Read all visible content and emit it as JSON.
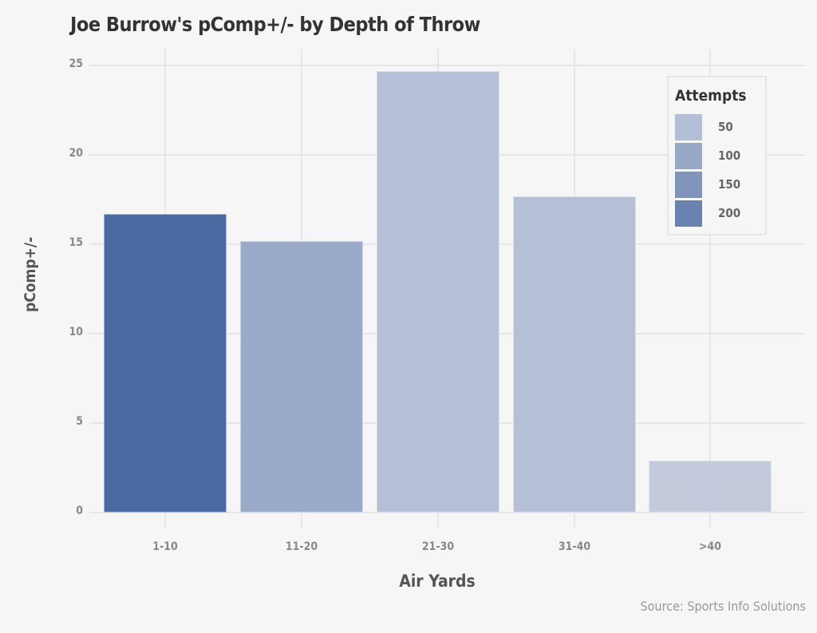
{
  "title": "Joe Burrow's pComp+/- by Depth of Throw",
  "source": "Source: Sports Info Solutions",
  "colors": {
    "background": "#f6f6f6",
    "grid": "#e6e6e6",
    "attempts_50": "#b3bfd7",
    "attempts_100": "#98a9c8",
    "attempts_150": "#8195bb",
    "attempts_200": "#6a82b0",
    "bar_1_10": "#4566a0",
    "bar_11_20": "#98a9c8",
    "bar_21_30": "#b3bfd7",
    "bar_31_40": "#b3bfd7",
    "bar_gt40": "#c1c9dc"
  },
  "legend": {
    "title": "Attempts",
    "items": [
      {
        "label": "50",
        "color": "#b3bfd7"
      },
      {
        "label": "100",
        "color": "#98a9c8"
      },
      {
        "label": "150",
        "color": "#8195bb"
      },
      {
        "label": "200",
        "color": "#6a82b0"
      }
    ]
  },
  "chart_data": {
    "type": "bar",
    "title": "Joe Burrow's pComp+/- by Depth of Throw",
    "xlabel": "Air Yards",
    "ylabel": "pComp+/-",
    "categories": [
      "1-10",
      "11-20",
      "21-30",
      "31-40",
      ">40"
    ],
    "values": [
      16.7,
      15.2,
      24.7,
      17.7,
      2.9
    ],
    "fill_by": "Attempts",
    "ylim": [
      0,
      26.5
    ],
    "yticks": [
      0,
      5,
      10,
      15,
      20,
      25
    ],
    "grid": true,
    "legend_position": "top-right inside",
    "source": "Source: Sports Info Solutions"
  }
}
